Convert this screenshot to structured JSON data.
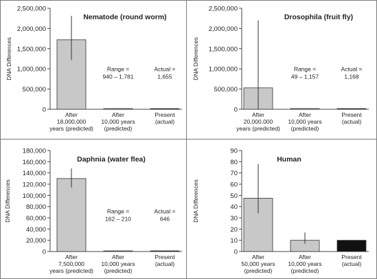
{
  "figure": {
    "ylabel": "DNA Differences"
  },
  "chart_data": [
    {
      "type": "bar",
      "title": "Nematode (round worm)",
      "ylabel": "DNA Differences",
      "ylim": [
        0,
        2500000
      ],
      "yticks": [
        "0",
        "500,000",
        "1,000,000",
        "1,500,000",
        "2,000,000",
        "2,500,000"
      ],
      "categories": [
        [
          "After",
          "18,000,000",
          "years (predicted)"
        ],
        [
          "After",
          "10,000 years",
          "(predicted)"
        ],
        [
          "Present",
          "(actual)"
        ]
      ],
      "values": [
        1720000,
        940,
        1655
      ],
      "error_bars": [
        [
          1220000,
          2310000
        ],
        null,
        null
      ],
      "bar_colors": [
        "#c8c8c8",
        "#c8c8c8",
        "#111111"
      ],
      "annotations": [
        {
          "lines": [
            "Range =",
            "940 – 1,781"
          ],
          "category": 1
        },
        {
          "lines": [
            "Actual =",
            "1,655"
          ],
          "category": 2
        }
      ]
    },
    {
      "type": "bar",
      "title": "Drosophila (fruit fly)",
      "ylabel": "DNA Differences",
      "ylim": [
        0,
        2500000
      ],
      "yticks": [
        "0",
        "500,000",
        "1,000,000",
        "1,500,000",
        "2,000,000",
        "2,500,000"
      ],
      "categories": [
        [
          "After",
          "20,000,000",
          "years (predicted)"
        ],
        [
          "After",
          "10,000 years",
          "(predicted)"
        ],
        [
          "Present",
          "(actual)"
        ]
      ],
      "values": [
        530000,
        49,
        1168
      ],
      "error_bars": [
        [
          0,
          2200000
        ],
        null,
        null
      ],
      "bar_colors": [
        "#c8c8c8",
        "#c8c8c8",
        "#111111"
      ],
      "annotations": [
        {
          "lines": [
            "Range =",
            "49 – 1,157"
          ],
          "category": 1
        },
        {
          "lines": [
            "Actual =",
            "1,168"
          ],
          "category": 2
        }
      ]
    },
    {
      "type": "bar",
      "title": "Daphnia (water flea)",
      "ylabel": "DNA Differences",
      "ylim": [
        0,
        180000
      ],
      "yticks": [
        "0",
        "20,000",
        "40,000",
        "60,000",
        "80,000",
        "100,000",
        "120,000",
        "140,000",
        "160,000",
        "180,000"
      ],
      "categories": [
        [
          "After",
          "7,500,000",
          "years (predicted)"
        ],
        [
          "After",
          "10,000 years",
          "(predicted)"
        ],
        [
          "Present",
          "(actual)"
        ]
      ],
      "values": [
        130000,
        162,
        646
      ],
      "error_bars": [
        [
          114000,
          148000
        ],
        null,
        null
      ],
      "bar_colors": [
        "#c8c8c8",
        "#c8c8c8",
        "#111111"
      ],
      "annotations": [
        {
          "lines": [
            "Range =",
            "162 – 210"
          ],
          "category": 1
        },
        {
          "lines": [
            "Actual =",
            "646"
          ],
          "category": 2
        }
      ]
    },
    {
      "type": "bar",
      "title": "Human",
      "ylabel": "DNA Differences",
      "ylim": [
        0,
        90
      ],
      "yticks": [
        "0",
        "10",
        "20",
        "30",
        "40",
        "50",
        "60",
        "70",
        "80",
        "90"
      ],
      "categories": [
        [
          "After",
          "50,000 years",
          "(predicted)"
        ],
        [
          "After",
          "10,000 years",
          "(predicted)"
        ],
        [
          "Present",
          "(actual)"
        ]
      ],
      "values": [
        47.5,
        10,
        10
      ],
      "error_bars": [
        [
          34,
          78
        ],
        [
          7,
          17
        ],
        null
      ],
      "bar_colors": [
        "#c8c8c8",
        "#c8c8c8",
        "#111111"
      ],
      "annotations": []
    }
  ]
}
